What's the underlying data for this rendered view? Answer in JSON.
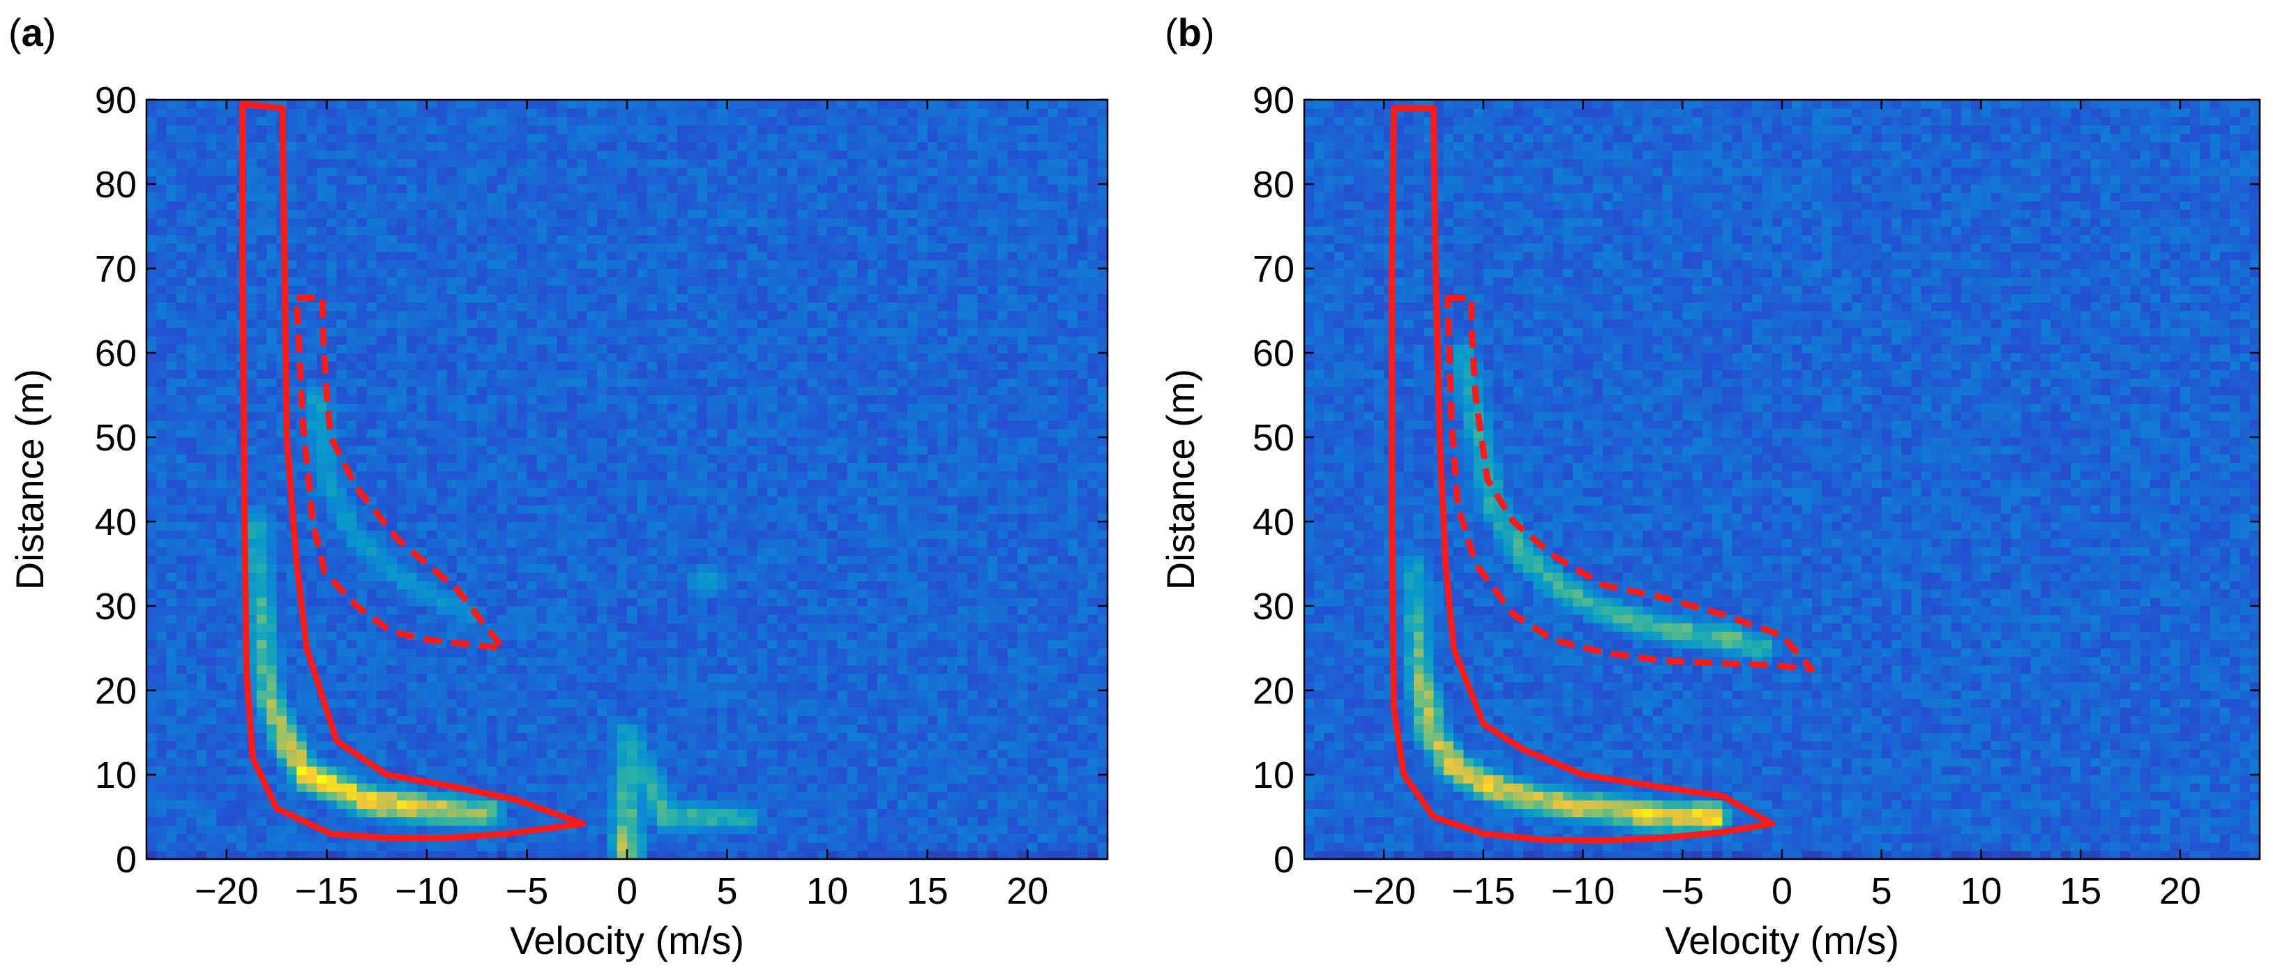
{
  "colors": {
    "region_outline": "#ff1a1a",
    "axis": "#000000"
  },
  "chart_data": [
    {
      "panel_label": "a",
      "type": "heatmap",
      "xlabel": "Velocity (m/s)",
      "ylabel": "Distance (m)",
      "xlim": [
        -24,
        24
      ],
      "ylim": [
        0,
        90
      ],
      "xticks": [
        -20,
        -15,
        -10,
        -5,
        0,
        5,
        10,
        15,
        20
      ],
      "xtick_labels": [
        "−20",
        "−15",
        "−10",
        "−5",
        "0",
        "5",
        "10",
        "15",
        "20"
      ],
      "yticks": [
        0,
        10,
        20,
        30,
        40,
        50,
        60,
        70,
        80,
        90
      ],
      "ytick_labels": [
        "0",
        "10",
        "20",
        "30",
        "40",
        "50",
        "60",
        "70",
        "80",
        "90"
      ],
      "features": [
        {
          "kind": "ridge",
          "description": "strong target return",
          "points": [
            [
              -18.5,
              40
            ],
            [
              -18,
              20
            ],
            [
              -17,
              14
            ],
            [
              -16,
              10
            ],
            [
              -15,
              9
            ],
            [
              -13,
              7
            ],
            [
              -11,
              6.3
            ],
            [
              -9,
              5.8
            ],
            [
              -7,
              5.5
            ]
          ],
          "intensity": [
            0.45,
            0.6,
            0.75,
            0.92,
            0.95,
            0.9,
            0.85,
            0.78,
            0.7
          ]
        },
        {
          "kind": "ridge",
          "description": "weak second return",
          "points": [
            [
              -15.5,
              55
            ],
            [
              -15,
              45
            ],
            [
              -13.5,
              38
            ],
            [
              -11,
              33
            ],
            [
              -8,
              29
            ]
          ],
          "intensity": [
            0.42,
            0.4,
            0.38,
            0.36,
            0.34
          ]
        },
        {
          "kind": "ridge",
          "description": "zero-velocity clutter",
          "points": [
            [
              0,
              1
            ],
            [
              0,
              5
            ],
            [
              0,
              10
            ],
            [
              0,
              15
            ],
            [
              2,
              5
            ],
            [
              4,
              5
            ],
            [
              6,
              5
            ]
          ],
          "intensity": [
            0.75,
            0.65,
            0.5,
            0.42,
            0.55,
            0.5,
            0.45
          ]
        },
        {
          "kind": "blob",
          "description": "faint spot",
          "points": [
            [
              4,
              33
            ]
          ],
          "intensity": [
            0.4
          ]
        }
      ],
      "regions": [
        {
          "style": "solid",
          "points": [
            [
              -19.2,
              89.5
            ],
            [
              -17.2,
              89
            ],
            [
              -17.2,
              87
            ],
            [
              -17.1,
              70
            ],
            [
              -17,
              50
            ],
            [
              -16.5,
              35
            ],
            [
              -16,
              25
            ],
            [
              -14.5,
              14
            ],
            [
              -12,
              10
            ],
            [
              -8.5,
              8.5
            ],
            [
              -5.5,
              7
            ],
            [
              -2.2,
              4.2
            ],
            [
              -6,
              3
            ],
            [
              -9,
              2.5
            ],
            [
              -12,
              2.5
            ],
            [
              -14.8,
              3
            ],
            [
              -17.5,
              6
            ],
            [
              -18.7,
              12
            ],
            [
              -19,
              22
            ],
            [
              -19.1,
              40
            ],
            [
              -19.2,
              70
            ],
            [
              -19.2,
              89.5
            ]
          ]
        },
        {
          "style": "dashed",
          "points": [
            [
              -16.5,
              66.5
            ],
            [
              -15.2,
              66.5
            ],
            [
              -15.2,
              63
            ],
            [
              -15,
              55
            ],
            [
              -14.8,
              50
            ],
            [
              -13.5,
              44
            ],
            [
              -11.5,
              38
            ],
            [
              -10,
              35
            ],
            [
              -8.5,
              32
            ],
            [
              -6.2,
              25
            ],
            [
              -8,
              25.5
            ],
            [
              -10,
              26
            ],
            [
              -11.8,
              27
            ],
            [
              -13.5,
              30
            ],
            [
              -15.1,
              34
            ],
            [
              -15.7,
              40
            ],
            [
              -16.2,
              52
            ],
            [
              -16.5,
              66.5
            ]
          ]
        }
      ]
    },
    {
      "panel_label": "b",
      "type": "heatmap",
      "xlabel": "Velocity (m/s)",
      "ylabel": "Distance (m)",
      "xlim": [
        -24,
        24
      ],
      "ylim": [
        0,
        90
      ],
      "xticks": [
        -20,
        -15,
        -10,
        -5,
        0,
        5,
        10,
        15,
        20
      ],
      "xtick_labels": [
        "−20",
        "−15",
        "−10",
        "−5",
        "0",
        "5",
        "10",
        "15",
        "20"
      ],
      "yticks": [
        0,
        10,
        20,
        30,
        40,
        50,
        60,
        70,
        80,
        90
      ],
      "ytick_labels": [
        "0",
        "10",
        "20",
        "30",
        "40",
        "50",
        "60",
        "70",
        "80",
        "90"
      ],
      "features": [
        {
          "kind": "ridge",
          "description": "strong target return",
          "points": [
            [
              -18.5,
              35
            ],
            [
              -18.2,
              22
            ],
            [
              -17.6,
              15
            ],
            [
              -16.5,
              11
            ],
            [
              -15,
              9
            ],
            [
              -13,
              7.5
            ],
            [
              -11,
              6.5
            ],
            [
              -9,
              6
            ],
            [
              -7,
              5.3
            ],
            [
              -5,
              5
            ],
            [
              -3.5,
              5
            ]
          ],
          "intensity": [
            0.42,
            0.62,
            0.74,
            0.85,
            0.85,
            0.82,
            0.8,
            0.78,
            0.86,
            0.84,
            0.95
          ]
        },
        {
          "kind": "ridge",
          "description": "second return",
          "points": [
            [
              -16,
              60
            ],
            [
              -15.2,
              50
            ],
            [
              -14.5,
              42
            ],
            [
              -13,
              36
            ],
            [
              -11,
              32
            ],
            [
              -9,
              29.5
            ],
            [
              -7,
              28
            ],
            [
              -5,
              27
            ],
            [
              -2.5,
              26
            ],
            [
              -1,
              25
            ]
          ],
          "intensity": [
            0.42,
            0.48,
            0.52,
            0.55,
            0.55,
            0.55,
            0.56,
            0.58,
            0.6,
            0.58
          ]
        }
      ],
      "regions": [
        {
          "style": "solid",
          "points": [
            [
              -19.5,
              89
            ],
            [
              -17.5,
              89
            ],
            [
              -17.5,
              87
            ],
            [
              -17.4,
              70
            ],
            [
              -17.2,
              50
            ],
            [
              -16.9,
              35
            ],
            [
              -16.5,
              25
            ],
            [
              -15,
              16
            ],
            [
              -13,
              13
            ],
            [
              -10,
              10
            ],
            [
              -6,
              8.5
            ],
            [
              -3,
              7.5
            ],
            [
              -0.5,
              4.2
            ],
            [
              -3,
              3.2
            ],
            [
              -6,
              2.5
            ],
            [
              -9,
              2.2
            ],
            [
              -12,
              2.3
            ],
            [
              -15,
              3
            ],
            [
              -17.5,
              5
            ],
            [
              -19,
              10
            ],
            [
              -19.5,
              18
            ],
            [
              -19.6,
              40
            ],
            [
              -19.6,
              70
            ],
            [
              -19.5,
              89
            ]
          ]
        },
        {
          "style": "dashed",
          "points": [
            [
              -16.8,
              66.5
            ],
            [
              -15.6,
              66.5
            ],
            [
              -15.6,
              63
            ],
            [
              -15.4,
              55
            ],
            [
              -14.8,
              45
            ],
            [
              -13.5,
              40
            ],
            [
              -11.5,
              36
            ],
            [
              -9,
              32.5
            ],
            [
              -6,
              31
            ],
            [
              -3,
              29
            ],
            [
              0,
              26.5
            ],
            [
              1.5,
              22.5
            ],
            [
              -0.5,
              23
            ],
            [
              -3,
              23.2
            ],
            [
              -6,
              23.5
            ],
            [
              -9,
              24.5
            ],
            [
              -11.5,
              26
            ],
            [
              -13.5,
              29
            ],
            [
              -15.4,
              35
            ],
            [
              -16.3,
              42
            ],
            [
              -16.6,
              52
            ],
            [
              -16.8,
              66.5
            ]
          ]
        }
      ]
    }
  ]
}
